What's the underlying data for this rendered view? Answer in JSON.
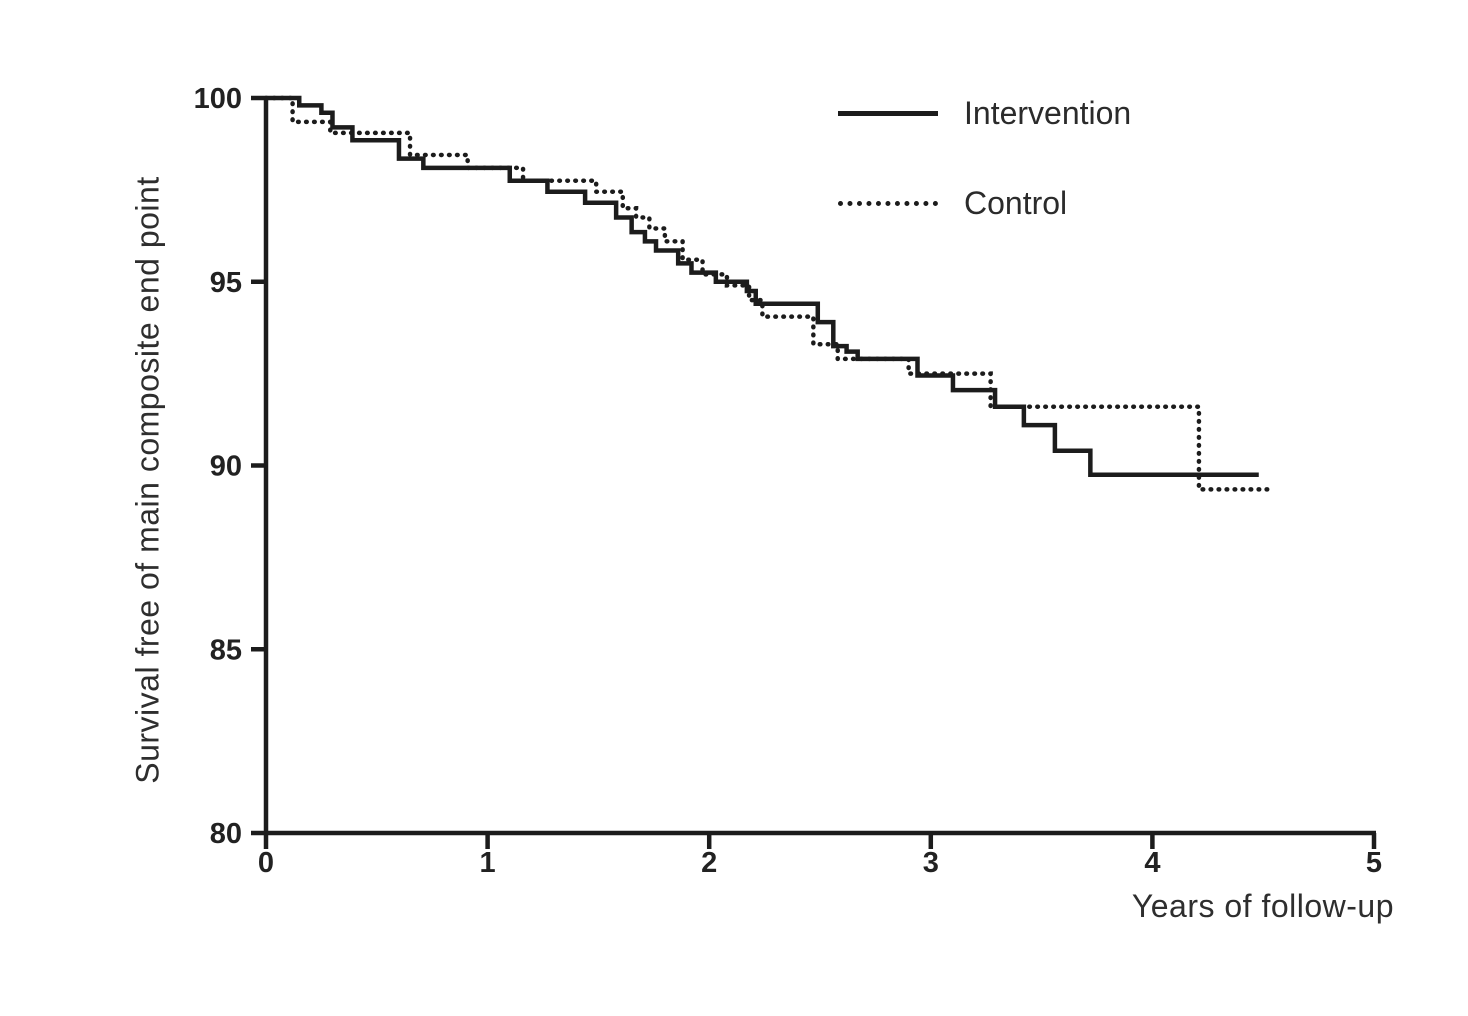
{
  "figure": {
    "background_color": "#ffffff",
    "line_color": "#1c1c1c",
    "text_color": "#2e2e2e"
  },
  "legend": {
    "position": "top-right",
    "items": [
      {
        "label": "Intervention",
        "line_style": "solid"
      },
      {
        "label": "Control",
        "line_style": "dotted"
      }
    ]
  },
  "chart_data": {
    "type": "line",
    "subtype": "kaplan-meier-step-survival",
    "title": "",
    "xlabel": "Years of follow-up",
    "ylabel": "Survival free of main composite end point",
    "xlim": [
      0,
      5
    ],
    "ylim": [
      80,
      100
    ],
    "x_ticks": [
      0,
      1,
      2,
      3,
      4,
      5
    ],
    "y_ticks": [
      100,
      95,
      90,
      85,
      80
    ],
    "grid": false,
    "legend_position": "top-right",
    "series": [
      {
        "name": "Intervention",
        "line_style": "solid",
        "points": [
          [
            0,
            100
          ],
          [
            0.15,
            99.8
          ],
          [
            0.25,
            99.6
          ],
          [
            0.3,
            99.2
          ],
          [
            0.39,
            98.85
          ],
          [
            0.6,
            98.35
          ],
          [
            0.71,
            98.1
          ],
          [
            1.1,
            97.75
          ],
          [
            1.27,
            97.45
          ],
          [
            1.44,
            97.15
          ],
          [
            1.58,
            96.75
          ],
          [
            1.65,
            96.35
          ],
          [
            1.71,
            96.1
          ],
          [
            1.76,
            95.85
          ],
          [
            1.86,
            95.5
          ],
          [
            1.92,
            95.25
          ],
          [
            2.03,
            95.0
          ],
          [
            2.17,
            94.75
          ],
          [
            2.21,
            94.4
          ],
          [
            2.49,
            93.9
          ],
          [
            2.56,
            93.25
          ],
          [
            2.62,
            93.1
          ],
          [
            2.67,
            92.9
          ],
          [
            2.94,
            92.45
          ],
          [
            3.1,
            92.05
          ],
          [
            3.29,
            91.6
          ],
          [
            3.42,
            91.1
          ],
          [
            3.56,
            90.4
          ],
          [
            3.72,
            89.75
          ]
        ],
        "end_x": 4.48
      },
      {
        "name": "Control",
        "line_style": "dotted",
        "points": [
          [
            0,
            100
          ],
          [
            0.12,
            99.35
          ],
          [
            0.29,
            99.05
          ],
          [
            0.65,
            98.45
          ],
          [
            0.91,
            98.1
          ],
          [
            1.16,
            97.75
          ],
          [
            1.49,
            97.45
          ],
          [
            1.61,
            97.0
          ],
          [
            1.67,
            96.75
          ],
          [
            1.73,
            96.45
          ],
          [
            1.8,
            96.1
          ],
          [
            1.88,
            95.6
          ],
          [
            1.97,
            95.2
          ],
          [
            2.08,
            94.9
          ],
          [
            2.18,
            94.5
          ],
          [
            2.24,
            94.05
          ],
          [
            2.47,
            93.3
          ],
          [
            2.58,
            92.9
          ],
          [
            2.9,
            92.5
          ],
          [
            3.27,
            91.6
          ],
          [
            4.21,
            89.35
          ]
        ],
        "end_x": 4.54
      }
    ]
  }
}
